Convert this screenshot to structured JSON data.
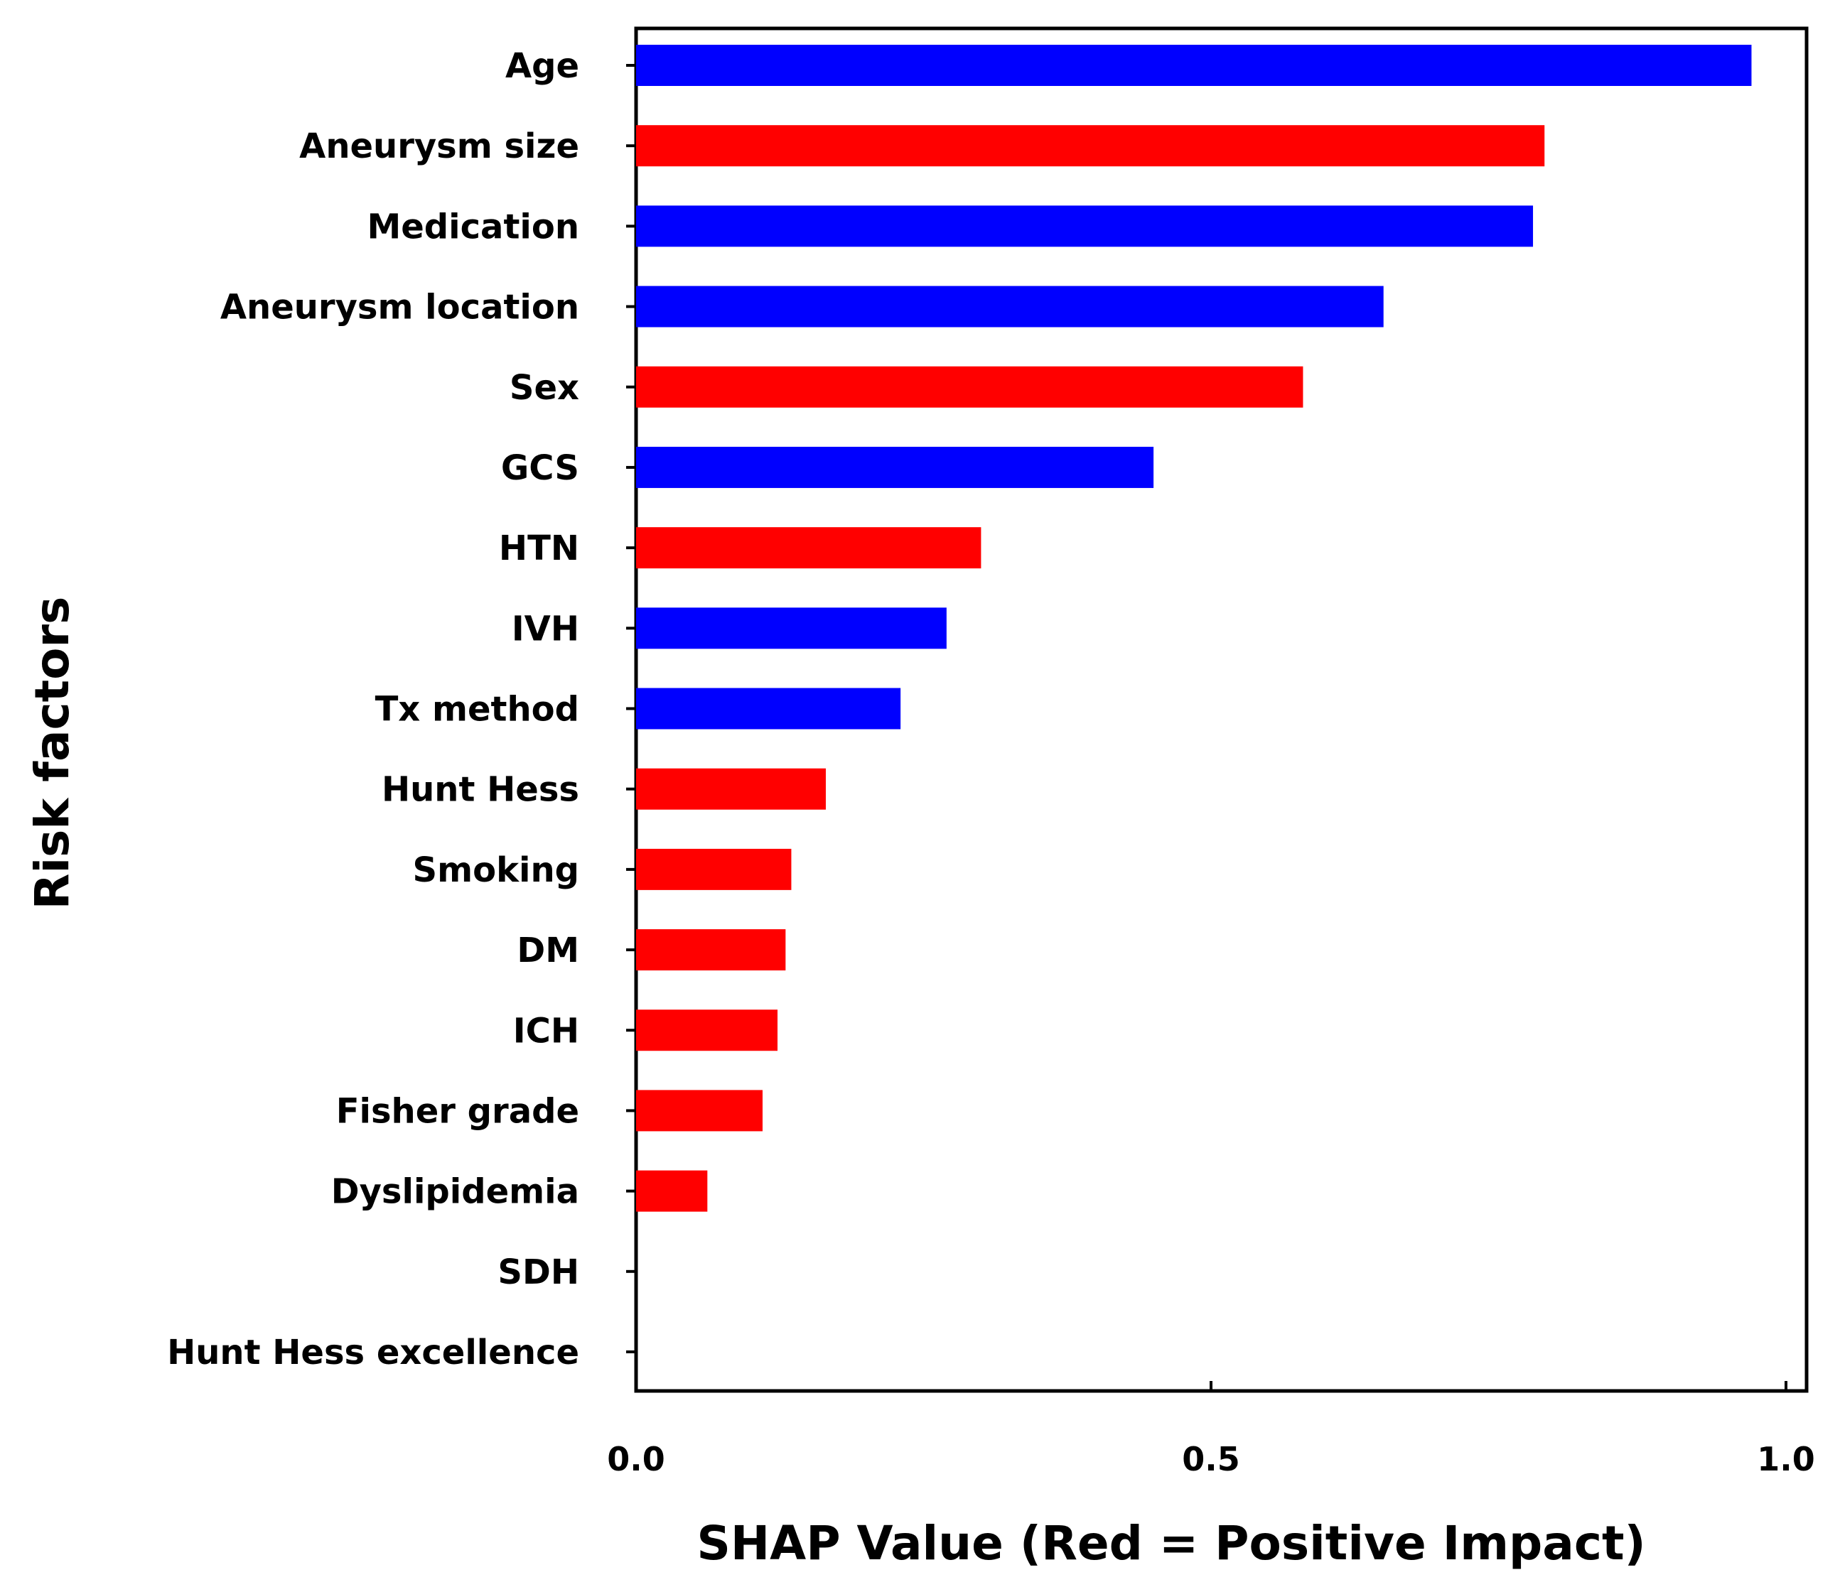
{
  "chart_data": {
    "type": "bar",
    "orientation": "horizontal",
    "title": "",
    "xlabel": "SHAP Value (Red = Positive Impact)",
    "ylabel": "Risk factors",
    "xlim": [
      0,
      1.0
    ],
    "xticks": [
      0.0,
      0.5,
      1.0
    ],
    "xtick_labels": [
      "0.0",
      "0.5",
      "1.0"
    ],
    "grid": false,
    "legend": "none",
    "colors": {
      "positive": "#ff0000",
      "negative": "#0000ff",
      "axis": "#000000"
    },
    "bars": [
      {
        "label": "Age",
        "value": 0.97,
        "impact": "negative"
      },
      {
        "label": "Aneurysm size",
        "value": 0.79,
        "impact": "positive"
      },
      {
        "label": "Medication",
        "value": 0.78,
        "impact": "negative"
      },
      {
        "label": "Aneurysm location",
        "value": 0.65,
        "impact": "negative"
      },
      {
        "label": "Sex",
        "value": 0.58,
        "impact": "positive"
      },
      {
        "label": "GCS",
        "value": 0.45,
        "impact": "negative"
      },
      {
        "label": "HTN",
        "value": 0.3,
        "impact": "positive"
      },
      {
        "label": "IVH",
        "value": 0.27,
        "impact": "negative"
      },
      {
        "label": "Tx method",
        "value": 0.23,
        "impact": "negative"
      },
      {
        "label": "Hunt Hess",
        "value": 0.165,
        "impact": "positive"
      },
      {
        "label": "Smoking",
        "value": 0.135,
        "impact": "positive"
      },
      {
        "label": "DM",
        "value": 0.13,
        "impact": "positive"
      },
      {
        "label": "ICH",
        "value": 0.123,
        "impact": "positive"
      },
      {
        "label": "Fisher grade",
        "value": 0.11,
        "impact": "positive"
      },
      {
        "label": "Dyslipidemia",
        "value": 0.062,
        "impact": "positive"
      },
      {
        "label": "SDH",
        "value": 0.0,
        "impact": "positive"
      },
      {
        "label": "Hunt Hess excellence",
        "value": 0.0,
        "impact": "positive"
      }
    ]
  }
}
